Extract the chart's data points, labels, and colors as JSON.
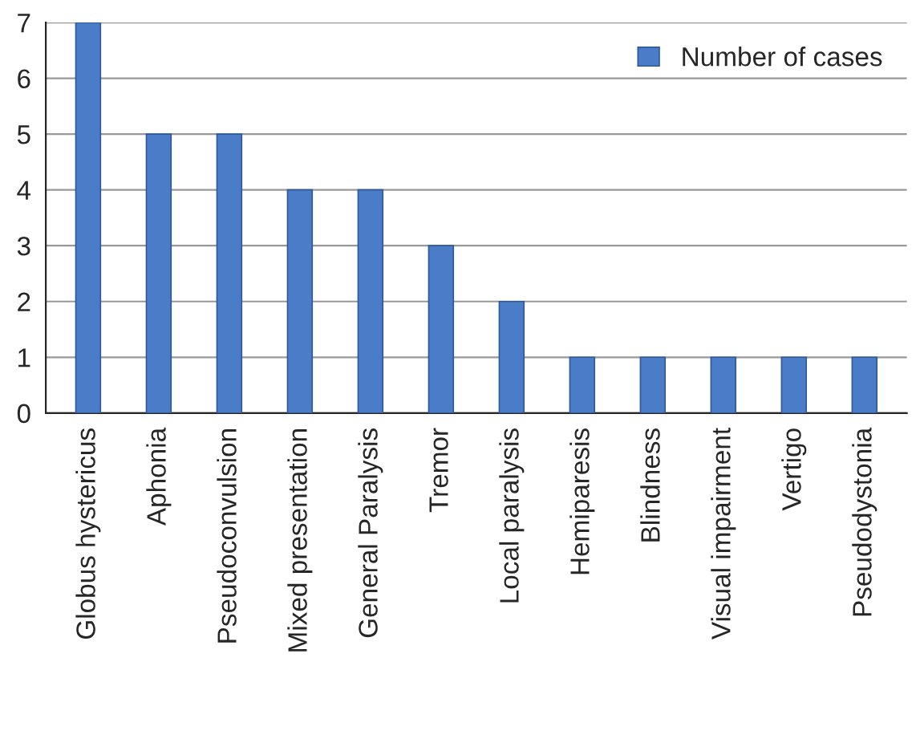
{
  "chart_data": {
    "type": "bar",
    "categories": [
      "Globus hystericus",
      "Aphonia",
      "Pseudoconvulsion",
      "Mixed presentation",
      "General Paralysis",
      "Tremor",
      "Local paralysis",
      "Hemiparesis",
      "Blindness",
      "Visual impairment",
      "Vertigo",
      "Pseudodystonia"
    ],
    "series": [
      {
        "name": "Number of cases",
        "color": "#4a7cc8",
        "values": [
          7,
          5,
          5,
          4,
          4,
          3,
          2,
          1,
          1,
          1,
          1,
          1
        ]
      }
    ],
    "ylim": [
      0,
      7
    ],
    "yticks": [
      0,
      1,
      2,
      3,
      4,
      5,
      6,
      7
    ],
    "grid": "y",
    "legend": "top right"
  }
}
